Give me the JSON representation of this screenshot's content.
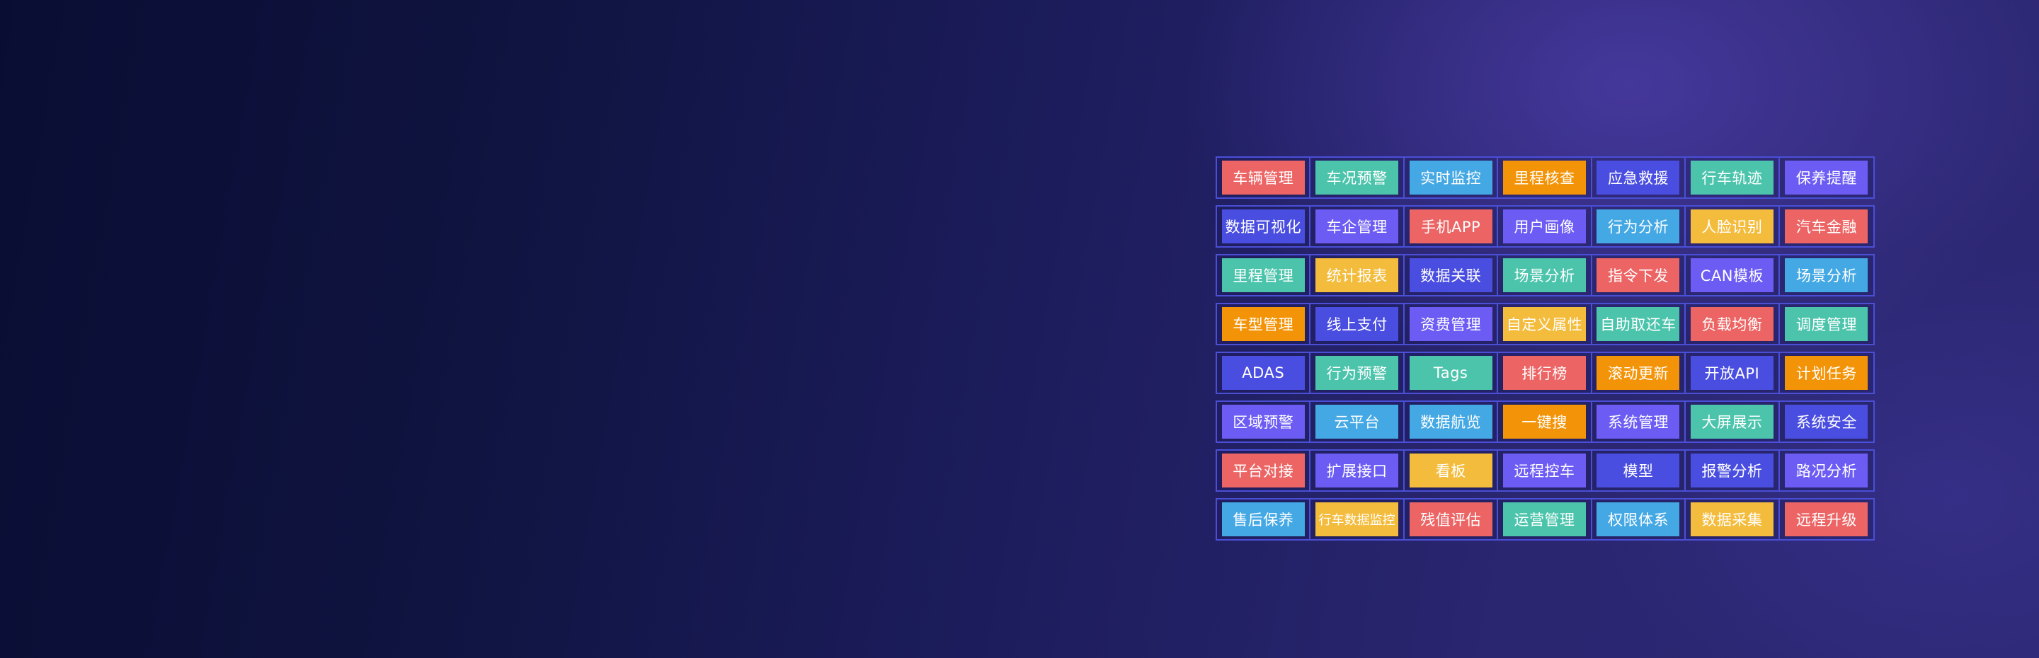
{
  "palette": {
    "red": "#ec6464",
    "teal": "#4cc4ac",
    "blue": "#44a8e4",
    "orange": "#f39408",
    "indigo": "#4a4ee0",
    "violet": "#6c5cf4",
    "yellow": "#f4bc3c"
  },
  "rows": [
    [
      {
        "label": "车辆管理",
        "color": "red"
      },
      {
        "label": "车况预警",
        "color": "teal"
      },
      {
        "label": "实时监控",
        "color": "blue"
      },
      {
        "label": "里程核查",
        "color": "orange"
      },
      {
        "label": "应急救援",
        "color": "indigo"
      },
      {
        "label": "行车轨迹",
        "color": "teal"
      },
      {
        "label": "保养提醒",
        "color": "violet"
      }
    ],
    [
      {
        "label": "数据可视化",
        "color": "indigo"
      },
      {
        "label": "车企管理",
        "color": "violet"
      },
      {
        "label": "手机APP",
        "color": "red"
      },
      {
        "label": "用户画像",
        "color": "violet"
      },
      {
        "label": "行为分析",
        "color": "blue"
      },
      {
        "label": "人脸识别",
        "color": "yellow"
      },
      {
        "label": "汽车金融",
        "color": "red"
      }
    ],
    [
      {
        "label": "里程管理",
        "color": "teal"
      },
      {
        "label": "统计报表",
        "color": "yellow"
      },
      {
        "label": "数据关联",
        "color": "indigo"
      },
      {
        "label": "场景分析",
        "color": "teal"
      },
      {
        "label": "指令下发",
        "color": "red"
      },
      {
        "label": "CAN模板",
        "color": "violet"
      },
      {
        "label": "场景分析",
        "color": "blue"
      }
    ],
    [
      {
        "label": "车型管理",
        "color": "orange"
      },
      {
        "label": "线上支付",
        "color": "indigo"
      },
      {
        "label": "资费管理",
        "color": "violet"
      },
      {
        "label": "自定义属性",
        "color": "yellow"
      },
      {
        "label": "自助取还车",
        "color": "teal"
      },
      {
        "label": "负载均衡",
        "color": "red"
      },
      {
        "label": "调度管理",
        "color": "teal"
      }
    ],
    [
      {
        "label": "ADAS",
        "color": "indigo"
      },
      {
        "label": "行为预警",
        "color": "teal"
      },
      {
        "label": "Tags",
        "color": "teal"
      },
      {
        "label": "排行榜",
        "color": "red"
      },
      {
        "label": "滚动更新",
        "color": "orange"
      },
      {
        "label": "开放API",
        "color": "indigo"
      },
      {
        "label": "计划任务",
        "color": "orange"
      }
    ],
    [
      {
        "label": "区域预警",
        "color": "violet"
      },
      {
        "label": "云平台",
        "color": "blue"
      },
      {
        "label": "数据航览",
        "color": "blue"
      },
      {
        "label": "一键搜",
        "color": "orange"
      },
      {
        "label": "系统管理",
        "color": "violet"
      },
      {
        "label": "大屏展示",
        "color": "teal"
      },
      {
        "label": "系统安全",
        "color": "indigo"
      }
    ],
    [
      {
        "label": "平台对接",
        "color": "red"
      },
      {
        "label": "扩展接口",
        "color": "violet"
      },
      {
        "label": "看板",
        "color": "yellow"
      },
      {
        "label": "远程控车",
        "color": "violet"
      },
      {
        "label": "模型",
        "color": "indigo"
      },
      {
        "label": "报警分析",
        "color": "indigo"
      },
      {
        "label": "路况分析",
        "color": "violet"
      }
    ],
    [
      {
        "label": "售后保养",
        "color": "blue"
      },
      {
        "label": "行车数据监控",
        "color": "yellow"
      },
      {
        "label": "残值评估",
        "color": "red"
      },
      {
        "label": "运营管理",
        "color": "teal"
      },
      {
        "label": "权限体系",
        "color": "blue"
      },
      {
        "label": "数据采集",
        "color": "yellow"
      },
      {
        "label": "远程升级",
        "color": "red"
      }
    ]
  ]
}
